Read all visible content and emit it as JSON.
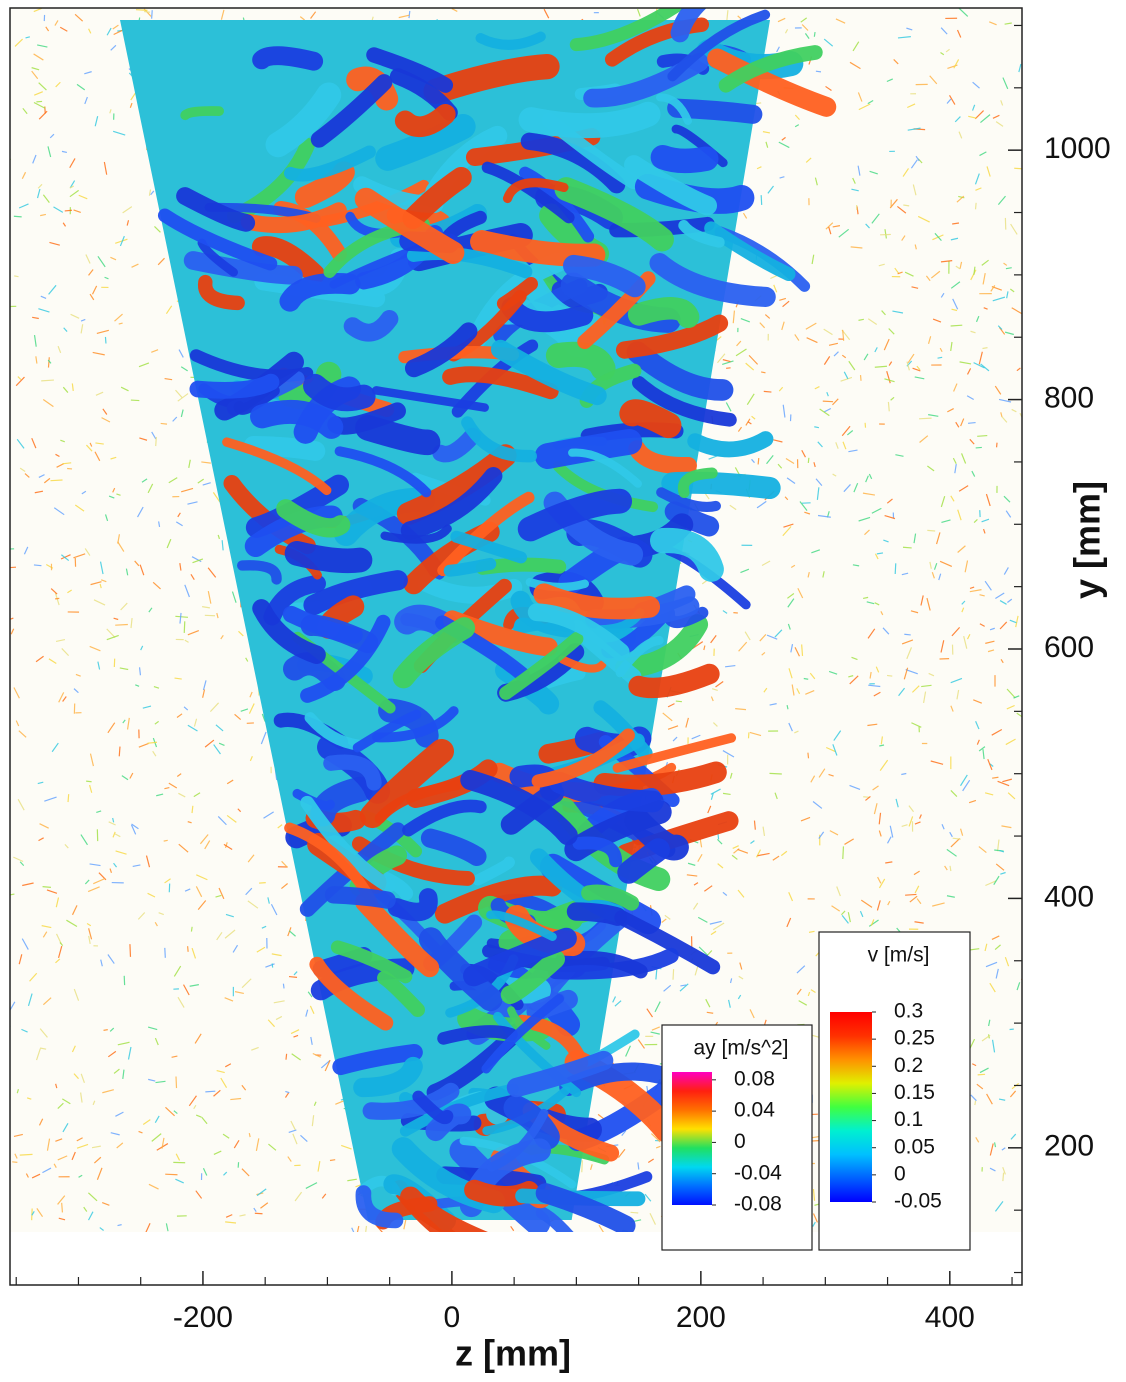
{
  "chart_data": {
    "type": "vector-field",
    "xlabel": "z [mm]",
    "ylabel": "y [mm]",
    "xlim": [
      -355,
      458
    ],
    "ylim": [
      90,
      1114
    ],
    "xticks": [
      -200,
      0,
      200,
      400
    ],
    "yticks": [
      200,
      400,
      600,
      800,
      1000
    ],
    "xminorticks": [
      -350,
      -300,
      -250,
      -150,
      -100,
      -50,
      50,
      100,
      150,
      250,
      300,
      350,
      450
    ],
    "yminorticks": [
      100,
      150,
      250,
      300,
      350,
      450,
      500,
      550,
      650,
      700,
      750,
      850,
      900,
      950,
      1050,
      1100
    ],
    "colorbars": [
      {
        "title": "ay [m/s^2]",
        "clim": [
          -0.08,
          0.09
        ],
        "ticks": [
          0.08,
          0.04,
          0,
          -0.04,
          -0.08
        ],
        "colors": [
          "#0010ff",
          "#0070ff",
          "#00d8f0",
          "#20e060",
          "#ffe000",
          "#ff7000",
          "#ff2010",
          "#ff00c0"
        ]
      },
      {
        "title": "v [m/s]",
        "clim": [
          -0.05,
          0.3
        ],
        "ticks": [
          0.3,
          0.25,
          0.2,
          0.15,
          0.1,
          0.05,
          0,
          -0.05
        ],
        "colors": [
          "#0000ff",
          "#0060ff",
          "#00c0ff",
          "#00f0d0",
          "#40ff40",
          "#e0f000",
          "#ff9000",
          "#ff3000",
          "#ff0000"
        ]
      }
    ]
  }
}
